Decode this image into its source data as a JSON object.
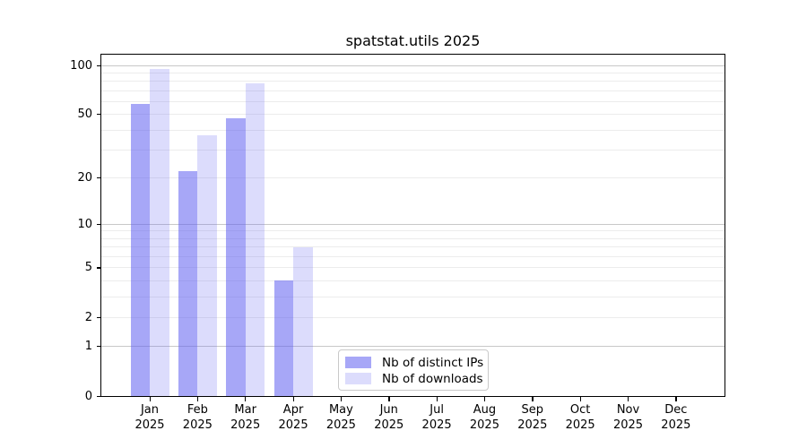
{
  "title": "spatstat.utils 2025",
  "legend": {
    "items": [
      "Nb of distinct IPs",
      "Nb of downloads"
    ]
  },
  "colors": {
    "bar_ips": "rgba(95,95,240,0.55)",
    "bar_ips_flat": "#a7a7f7",
    "bar_downloads": "rgba(95,95,240,0.22)",
    "bar_downloads_flat": "#dcdcfc",
    "grid_major": "#c8c8c8",
    "grid_minor": "#ececec",
    "axis": "#000000",
    "legend_border": "#c9c9c9"
  },
  "chart_data": {
    "type": "bar",
    "title": "spatstat.utils 2025",
    "categories": [
      "Jan",
      "Feb",
      "Mar",
      "Apr",
      "May",
      "Jun",
      "Jul",
      "Aug",
      "Sep",
      "Oct",
      "Nov",
      "Dec"
    ],
    "category_year": "2025",
    "series": [
      {
        "name": "Nb of distinct IPs",
        "color": "rgba(95,95,240,0.55)",
        "values": [
          58,
          22,
          47,
          4,
          0,
          0,
          0,
          0,
          0,
          0,
          0,
          0
        ]
      },
      {
        "name": "Nb of downloads",
        "color": "rgba(95,95,240,0.22)",
        "values": [
          95,
          37,
          78,
          7,
          0,
          0,
          0,
          0,
          0,
          0,
          0,
          0
        ]
      }
    ],
    "xlabel": "",
    "ylabel": "",
    "yscale": "log1p",
    "yticks": [
      100,
      50,
      20,
      10,
      5,
      2,
      1,
      0
    ],
    "minor_gridlines": [
      2,
      3,
      4,
      5,
      6,
      7,
      8,
      9,
      20,
      30,
      40,
      50,
      60,
      70,
      80,
      90
    ],
    "major_gridlines": [
      1,
      10,
      100
    ],
    "ylim": [
      0,
      118
    ],
    "grid": "horizontal",
    "legend_position": "inside-bottom-center"
  }
}
